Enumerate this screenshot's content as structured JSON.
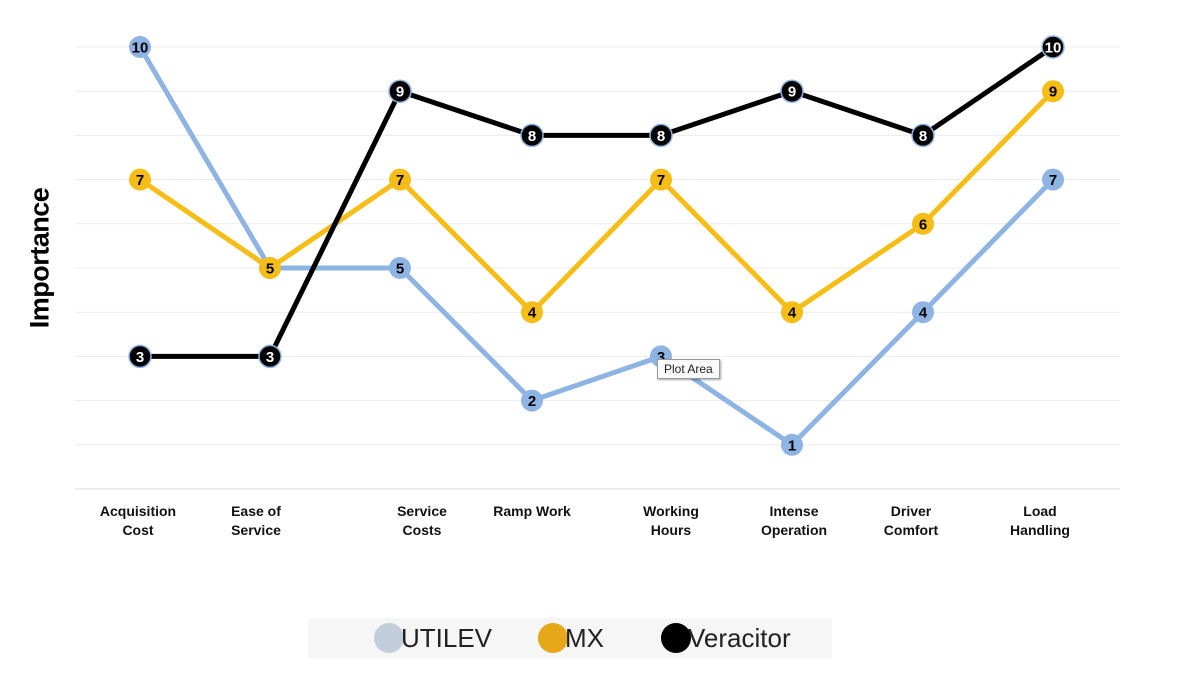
{
  "chart_data": {
    "type": "line",
    "ylabel": "Importance",
    "ylim": [
      0,
      10
    ],
    "grid": true,
    "legend_position": "bottom",
    "categories": [
      "Acquisition\nCost",
      "Ease of\nService",
      "Service\nCosts",
      "Ramp Work",
      "Working\nHours",
      "Intense\nOperation",
      "Driver\nComfort",
      "Load\nHandling"
    ],
    "series": [
      {
        "name": "UTILEV",
        "color": "#8eb4e3",
        "legend_color": "#c3cedc",
        "values": [
          10,
          5,
          5,
          2,
          3,
          1,
          4,
          7
        ]
      },
      {
        "name": "MX",
        "color": "#f6bd16",
        "legend_color": "#e6a718",
        "values": [
          7,
          5,
          7,
          4,
          7,
          4,
          6,
          9
        ]
      },
      {
        "name": "Veracitor",
        "color": "#000000",
        "legend_color": "#000000",
        "values": [
          3,
          3,
          9,
          8,
          8,
          9,
          8,
          10
        ]
      }
    ]
  },
  "tooltip": {
    "text": "Plot Area"
  }
}
